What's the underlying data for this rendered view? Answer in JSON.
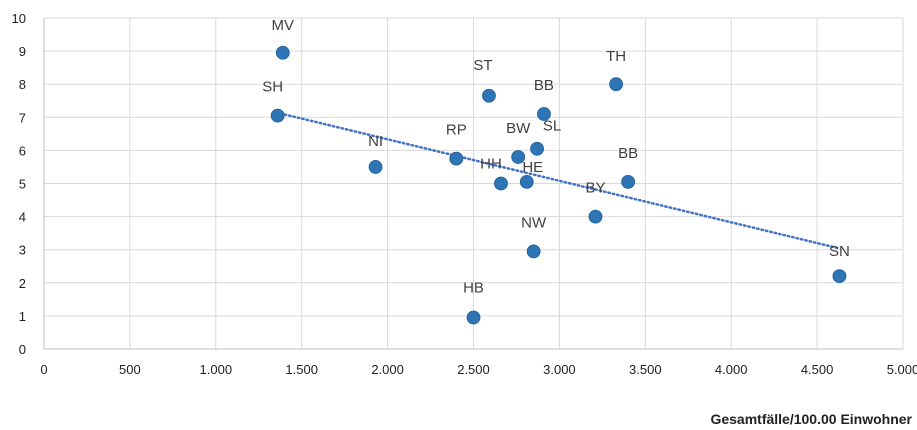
{
  "chart_data": {
    "type": "scatter",
    "xlabel": "Gesamtfälle/100.00 Einwohner",
    "ylabel": "",
    "xlim": [
      0,
      5000
    ],
    "ylim": [
      0,
      10
    ],
    "xticks": [
      0,
      500,
      1000,
      1500,
      2000,
      2500,
      3000,
      3500,
      4000,
      4500,
      5000
    ],
    "xtick_labels": [
      "0",
      "500",
      "1.000",
      "1.500",
      "2.000",
      "2.500",
      "3.000",
      "3.500",
      "4.000",
      "4.500",
      "5.000"
    ],
    "yticks": [
      0,
      1,
      2,
      3,
      4,
      5,
      6,
      7,
      8,
      9,
      10
    ],
    "ytick_labels": [
      "0",
      "1",
      "2",
      "3",
      "4",
      "5",
      "6",
      "7",
      "8",
      "9",
      "10"
    ],
    "grid": true,
    "marker_color": "#2E75B6",
    "trendline": {
      "style": "dotted",
      "color": "#4472C4",
      "x": [
        1350,
        4620
      ],
      "y": [
        7.15,
        3.05
      ]
    },
    "points": [
      {
        "label": "MV",
        "x": 1390,
        "y": 8.95
      },
      {
        "label": "SH",
        "x": 1360,
        "y": 7.05
      },
      {
        "label": "NI",
        "x": 1930,
        "y": 5.5
      },
      {
        "label": "RP",
        "x": 2400,
        "y": 5.75
      },
      {
        "label": "ST",
        "x": 2590,
        "y": 7.65
      },
      {
        "label": "HH",
        "x": 2660,
        "y": 5.0
      },
      {
        "label": "BW",
        "x": 2760,
        "y": 5.8
      },
      {
        "label": "HE",
        "x": 2810,
        "y": 5.05
      },
      {
        "label": "SL",
        "x": 2870,
        "y": 6.05
      },
      {
        "label": "BB",
        "x": 2910,
        "y": 7.1
      },
      {
        "label": "NW",
        "x": 2850,
        "y": 2.95
      },
      {
        "label": "HB",
        "x": 2500,
        "y": 0.95
      },
      {
        "label": "BY",
        "x": 3210,
        "y": 4.0
      },
      {
        "label": "TH",
        "x": 3330,
        "y": 8.0
      },
      {
        "label": "BB",
        "x": 3400,
        "y": 5.05
      },
      {
        "label": "SN",
        "x": 4630,
        "y": 2.2
      }
    ]
  }
}
